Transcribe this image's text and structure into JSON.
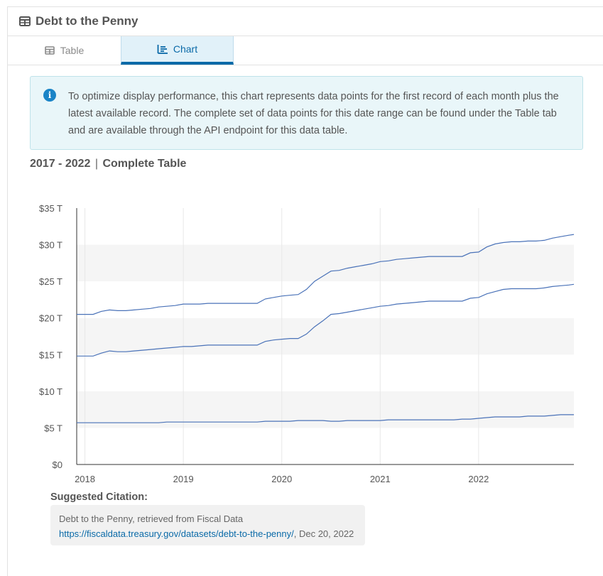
{
  "header": {
    "title": "Debt to the Penny"
  },
  "tabs": [
    {
      "label": "Table",
      "active": false
    },
    {
      "label": "Chart",
      "active": true
    }
  ],
  "info": {
    "text": "To optimize display performance, this chart represents data points for the first record of each month plus the latest available record. The complete set of data points for this date range can be found under the Table tab and are available through the API endpoint for this data table."
  },
  "range": {
    "years": "2017 - 2022",
    "separator": "|",
    "label": "Complete Table"
  },
  "citation": {
    "label": "Suggested Citation:",
    "source": "Debt to the Penny, retrieved from Fiscal Data",
    "url": "https://fiscaldata.treasury.gov/datasets/debt-to-the-penny/",
    "date_suffix": ", Dec 20, 2022"
  },
  "colors": {
    "accent": "#0a6aa8",
    "line": "#4a72b8",
    "tab_active_bg": "#e1f1f9",
    "info_bg": "#e9f6f9"
  },
  "chart_data": {
    "type": "line",
    "title": "",
    "xlabel": "",
    "ylabel": "",
    "x_ticks": [
      "2018",
      "2019",
      "2020",
      "2021",
      "2022"
    ],
    "y_ticks": [
      "$0",
      "$5 T",
      "$10 T",
      "$15 T",
      "$20 T",
      "$25 T",
      "$30 T",
      "$35 T"
    ],
    "ylim": [
      0,
      35
    ],
    "xlim": [
      "2017-12",
      "2022-12-20"
    ],
    "grid": "horizontal bands",
    "legend": "none",
    "x": [
      "2017-12",
      "2018-01",
      "2018-02",
      "2018-03",
      "2018-04",
      "2018-05",
      "2018-06",
      "2018-07",
      "2018-08",
      "2018-09",
      "2018-10",
      "2018-11",
      "2018-12",
      "2019-01",
      "2019-02",
      "2019-03",
      "2019-04",
      "2019-05",
      "2019-06",
      "2019-07",
      "2019-08",
      "2019-09",
      "2019-10",
      "2019-11",
      "2019-12",
      "2020-01",
      "2020-02",
      "2020-03",
      "2020-04",
      "2020-05",
      "2020-06",
      "2020-07",
      "2020-08",
      "2020-09",
      "2020-10",
      "2020-11",
      "2020-12",
      "2021-01",
      "2021-02",
      "2021-03",
      "2021-04",
      "2021-05",
      "2021-06",
      "2021-07",
      "2021-08",
      "2021-09",
      "2021-10",
      "2021-11",
      "2021-12",
      "2022-01",
      "2022-02",
      "2022-03",
      "2022-04",
      "2022-05",
      "2022-06",
      "2022-07",
      "2022-08",
      "2022-09",
      "2022-10",
      "2022-11",
      "2022-12",
      "2022-12-20"
    ],
    "series": [
      {
        "values": [
          20.5,
          20.5,
          20.5,
          20.9,
          21.1,
          21.0,
          21.0,
          21.1,
          21.2,
          21.3,
          21.5,
          21.6,
          21.7,
          21.9,
          21.9,
          21.9,
          22.0,
          22.0,
          22.0,
          22.0,
          22.0,
          22.0,
          22.0,
          22.6,
          22.8,
          23.0,
          23.1,
          23.2,
          23.9,
          25.0,
          25.7,
          26.4,
          26.5,
          26.8,
          27.0,
          27.2,
          27.4,
          27.7,
          27.8,
          28.0,
          28.1,
          28.2,
          28.3,
          28.4,
          28.4,
          28.4,
          28.4,
          28.4,
          28.9,
          29.0,
          29.7,
          30.1,
          30.3,
          30.4,
          30.4,
          30.5,
          30.5,
          30.6,
          30.9,
          31.1,
          31.3,
          31.4
        ]
      },
      {
        "values": [
          14.8,
          14.8,
          14.8,
          15.2,
          15.5,
          15.4,
          15.4,
          15.5,
          15.6,
          15.7,
          15.8,
          15.9,
          16.0,
          16.1,
          16.1,
          16.2,
          16.3,
          16.3,
          16.3,
          16.3,
          16.3,
          16.3,
          16.3,
          16.8,
          17.0,
          17.1,
          17.2,
          17.2,
          17.8,
          18.8,
          19.6,
          20.5,
          20.6,
          20.8,
          21.0,
          21.2,
          21.4,
          21.6,
          21.7,
          21.9,
          22.0,
          22.1,
          22.2,
          22.3,
          22.3,
          22.3,
          22.3,
          22.3,
          22.7,
          22.8,
          23.3,
          23.6,
          23.9,
          24.0,
          24.0,
          24.0,
          24.0,
          24.1,
          24.3,
          24.4,
          24.5,
          24.6
        ]
      },
      {
        "values": [
          5.7,
          5.7,
          5.7,
          5.7,
          5.7,
          5.7,
          5.7,
          5.7,
          5.7,
          5.7,
          5.7,
          5.8,
          5.8,
          5.8,
          5.8,
          5.8,
          5.8,
          5.8,
          5.8,
          5.8,
          5.8,
          5.8,
          5.8,
          5.9,
          5.9,
          5.9,
          5.9,
          6.0,
          6.0,
          6.0,
          6.0,
          5.9,
          5.9,
          6.0,
          6.0,
          6.0,
          6.0,
          6.0,
          6.1,
          6.1,
          6.1,
          6.1,
          6.1,
          6.1,
          6.1,
          6.1,
          6.1,
          6.2,
          6.2,
          6.3,
          6.4,
          6.5,
          6.5,
          6.5,
          6.5,
          6.6,
          6.6,
          6.6,
          6.7,
          6.8,
          6.8,
          6.8
        ]
      }
    ]
  }
}
